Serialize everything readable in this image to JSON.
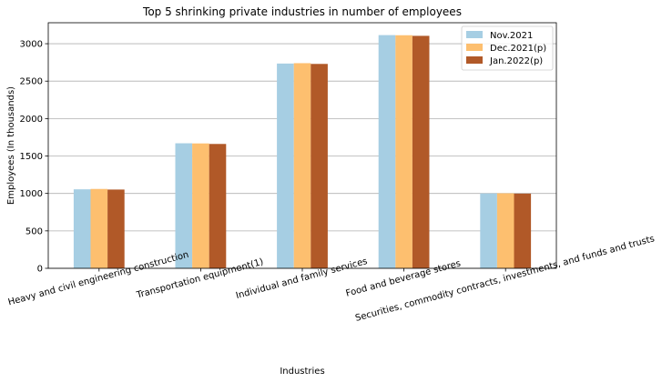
{
  "chart_data": {
    "type": "bar",
    "title": "Top 5 shrinking private industries in number of employees",
    "xlabel": "Industries",
    "ylabel": "Employees (In thousands)",
    "categories": [
      "Heavy and civil engineering construction",
      "Transportation equipment(1)",
      "Individual and family services",
      "Food and beverage stores",
      "Securities, commodity contracts, investments, and funds and trusts"
    ],
    "series": [
      {
        "name": "Nov.2021",
        "color": "#a6cee3",
        "values": [
          1055,
          1670,
          2735,
          3115,
          1000
        ]
      },
      {
        "name": "Dec.2021(p)",
        "color": "#fdbf6f",
        "values": [
          1060,
          1668,
          2740,
          3113,
          1002
        ]
      },
      {
        "name": "Jan.2022(p)",
        "color": "#b15928",
        "values": [
          1052,
          1661,
          2730,
          3105,
          998
        ]
      }
    ],
    "ylim": [
      0,
      3280
    ],
    "yticks": [
      0,
      500,
      1000,
      1500,
      2000,
      2500,
      3000
    ],
    "grid": "y",
    "legend_position": "top-right"
  }
}
